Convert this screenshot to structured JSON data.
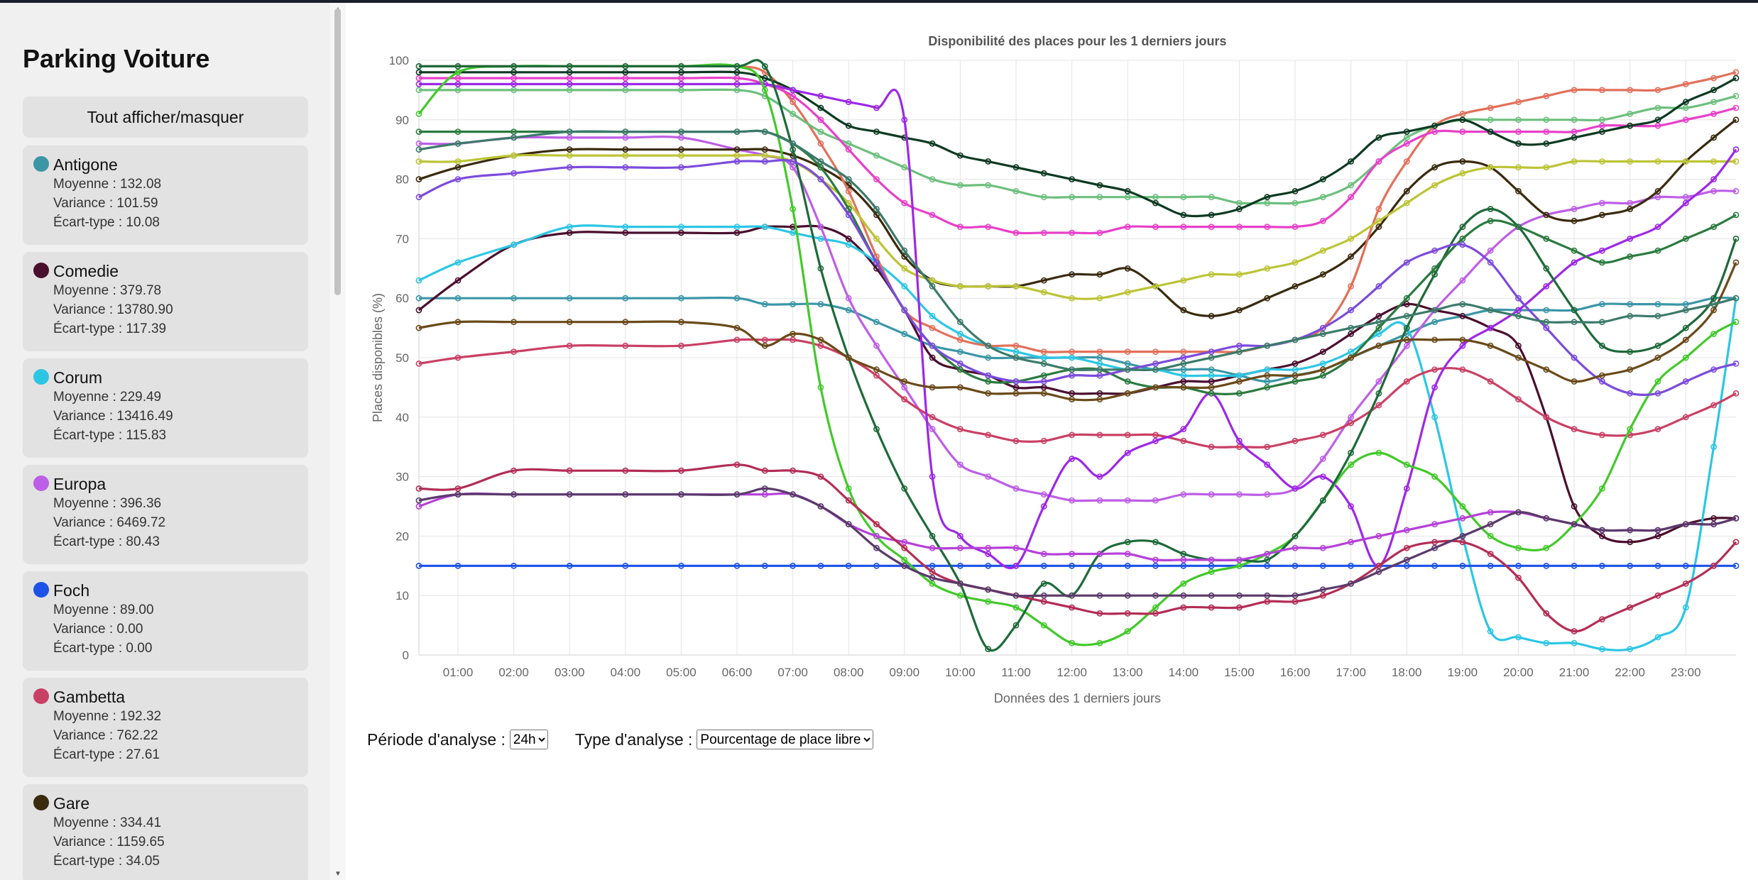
{
  "sidebar": {
    "title": "Parking Voiture",
    "toggle_label": "Tout afficher/masquer",
    "parkings": [
      {
        "name": "Antigone",
        "color": "#3a96a6",
        "moyenne": "Moyenne : 132.08",
        "variance": "Variance : 101.59",
        "ecart": "Écart-type : 10.08"
      },
      {
        "name": "Comedie",
        "color": "#4a0f2e",
        "moyenne": "Moyenne : 379.78",
        "variance": "Variance : 13780.90",
        "ecart": "Écart-type : 117.39"
      },
      {
        "name": "Corum",
        "color": "#2cc6e4",
        "moyenne": "Moyenne : 229.49",
        "variance": "Variance : 13416.49",
        "ecart": "Écart-type : 115.83"
      },
      {
        "name": "Europa",
        "color": "#bd5fe6",
        "moyenne": "Moyenne : 396.36",
        "variance": "Variance : 6469.72",
        "ecart": "Écart-type : 80.43"
      },
      {
        "name": "Foch",
        "color": "#1d52e8",
        "moyenne": "Moyenne : 89.00",
        "variance": "Variance : 0.00",
        "ecart": "Écart-type : 0.00"
      },
      {
        "name": "Gambetta",
        "color": "#c94065",
        "moyenne": "Moyenne : 192.32",
        "variance": "Variance : 762.22",
        "ecart": "Écart-type : 27.61"
      },
      {
        "name": "Gare",
        "color": "#3a2a0e",
        "moyenne": "Moyenne : 334.41",
        "variance": "Variance : 1159.65",
        "ecart": "Écart-type : 34.05"
      }
    ]
  },
  "controls": {
    "period_label": "Période d'analyse :",
    "period_value": "24h",
    "type_label": "Type d'analyse :",
    "type_value": "Pourcentage de place libre"
  },
  "chart_data": {
    "type": "line",
    "title": "Disponibilité des places pour les 1 derniers jours",
    "xlabel": "Données des 1 derniers jours",
    "ylabel": "Places disponibles (%)",
    "ylim": [
      0,
      100
    ],
    "yticks": [
      "0",
      "10",
      "20",
      "30",
      "40",
      "50",
      "60",
      "70",
      "80",
      "90",
      "100"
    ],
    "xlim": [
      0.3,
      23.9
    ],
    "xticks": [
      "01:00",
      "02:00",
      "03:00",
      "04:00",
      "05:00",
      "06:00",
      "07:00",
      "08:00",
      "09:00",
      "10:00",
      "11:00",
      "12:00",
      "13:00",
      "14:00",
      "15:00",
      "16:00",
      "17:00",
      "18:00",
      "19:00",
      "20:00",
      "21:00",
      "22:00",
      "23:00"
    ],
    "grid": true,
    "x": [
      0.3,
      1,
      2,
      3,
      4,
      5,
      6,
      6.5,
      7,
      7.5,
      8,
      8.5,
      9,
      9.5,
      10,
      10.5,
      11,
      11.5,
      12,
      12.5,
      13,
      13.5,
      14,
      14.5,
      15,
      15.5,
      16,
      16.5,
      17,
      17.5,
      18,
      18.5,
      19,
      19.5,
      20,
      20.5,
      21,
      21.5,
      22,
      22.5,
      23,
      23.5,
      23.9
    ],
    "series": [
      {
        "color": "#3a96a6",
        "values": [
          60,
          60,
          60,
          60,
          60,
          60,
          60,
          59,
          59,
          59,
          58,
          56,
          54,
          52,
          51,
          50,
          50,
          50,
          50,
          50,
          49,
          48,
          48,
          48,
          47,
          46,
          47,
          48,
          50,
          52,
          54,
          56,
          57,
          58,
          58,
          58,
          58,
          59,
          59,
          59,
          59,
          60,
          60
        ]
      },
      {
        "color": "#4a0f2e",
        "values": [
          58,
          63,
          69,
          71,
          71,
          71,
          71,
          72,
          72,
          72,
          70,
          65,
          58,
          50,
          48,
          47,
          45,
          45,
          44,
          44,
          44,
          45,
          46,
          46,
          47,
          48,
          49,
          51,
          54,
          57,
          59,
          58,
          57,
          55,
          52,
          40,
          25,
          20,
          19,
          20,
          22,
          23,
          23
        ]
      },
      {
        "color": "#2cc6e4",
        "values": [
          63,
          66,
          69,
          72,
          72,
          72,
          72,
          72,
          71,
          70,
          69,
          66,
          62,
          57,
          54,
          52,
          51,
          50,
          50,
          49,
          48,
          48,
          47,
          47,
          47,
          48,
          48,
          49,
          51,
          54,
          55,
          40,
          20,
          4,
          3,
          2,
          2,
          1,
          1,
          3,
          8,
          35,
          60
        ]
      },
      {
        "color": "#bd5fe6",
        "values": [
          86,
          86,
          87,
          87,
          87,
          87,
          85,
          84,
          82,
          72,
          60,
          52,
          45,
          38,
          32,
          30,
          28,
          27,
          26,
          26,
          26,
          26,
          27,
          27,
          27,
          27,
          28,
          33,
          40,
          46,
          52,
          58,
          63,
          68,
          72,
          74,
          75,
          76,
          76,
          77,
          77,
          78,
          78
        ]
      },
      {
        "color": "#1d52e8",
        "values": [
          15,
          15,
          15,
          15,
          15,
          15,
          15,
          15,
          15,
          15,
          15,
          15,
          15,
          15,
          15,
          15,
          15,
          15,
          15,
          15,
          15,
          15,
          15,
          15,
          15,
          15,
          15,
          15,
          15,
          15,
          15,
          15,
          15,
          15,
          15,
          15,
          15,
          15,
          15,
          15,
          15,
          15,
          15
        ]
      },
      {
        "color": "#c94065",
        "values": [
          49,
          50,
          51,
          52,
          52,
          52,
          53,
          53,
          53,
          52,
          50,
          47,
          43,
          40,
          38,
          37,
          36,
          36,
          37,
          37,
          37,
          37,
          36,
          35,
          35,
          35,
          36,
          37,
          39,
          42,
          46,
          48,
          48,
          46,
          43,
          40,
          38,
          37,
          37,
          38,
          40,
          42,
          44
        ]
      },
      {
        "color": "#3a2a0e",
        "values": [
          80,
          82,
          84,
          85,
          85,
          85,
          85,
          85,
          84,
          82,
          79,
          74,
          67,
          63,
          62,
          62,
          62,
          63,
          64,
          64,
          65,
          62,
          58,
          57,
          58,
          60,
          62,
          64,
          67,
          72,
          78,
          82,
          83,
          82,
          78,
          74,
          73,
          74,
          75,
          78,
          83,
          87,
          90
        ]
      },
      {
        "color": "#e2705a",
        "values": [
          99,
          99,
          99,
          99,
          99,
          99,
          99,
          98,
          93,
          86,
          78,
          67,
          58,
          55,
          53,
          52,
          52,
          51,
          51,
          51,
          51,
          51,
          51,
          51,
          51,
          52,
          53,
          55,
          62,
          75,
          83,
          89,
          91,
          92,
          93,
          94,
          95,
          95,
          95,
          95,
          96,
          97,
          98
        ]
      },
      {
        "color": "#6dbf7e",
        "values": [
          95,
          95,
          95,
          95,
          95,
          95,
          95,
          94,
          91,
          88,
          86,
          84,
          82,
          80,
          79,
          79,
          78,
          77,
          77,
          77,
          77,
          77,
          77,
          77,
          76,
          76,
          76,
          77,
          79,
          83,
          87,
          89,
          90,
          90,
          90,
          90,
          90,
          90,
          91,
          92,
          92,
          93,
          94
        ]
      },
      {
        "color": "#e740c9",
        "values": [
          97,
          97,
          97,
          97,
          97,
          97,
          97,
          96,
          94,
          90,
          85,
          80,
          76,
          74,
          72,
          72,
          71,
          71,
          71,
          71,
          72,
          72,
          72,
          72,
          72,
          72,
          72,
          73,
          77,
          83,
          86,
          88,
          88,
          88,
          88,
          88,
          88,
          89,
          89,
          89,
          90,
          91,
          92
        ]
      },
      {
        "color": "#0d3a22",
        "values": [
          98,
          98,
          98,
          98,
          98,
          98,
          98,
          97,
          95,
          92,
          89,
          88,
          87,
          86,
          84,
          83,
          82,
          81,
          80,
          79,
          78,
          76,
          74,
          74,
          75,
          77,
          78,
          80,
          83,
          87,
          88,
          89,
          90,
          88,
          86,
          86,
          87,
          88,
          89,
          90,
          93,
          95,
          97
        ]
      },
      {
        "color": "#bcc435",
        "values": [
          83,
          83,
          84,
          84,
          84,
          84,
          84,
          84,
          83,
          80,
          76,
          70,
          65,
          63,
          62,
          62,
          62,
          61,
          60,
          60,
          61,
          62,
          63,
          64,
          64,
          65,
          66,
          68,
          70,
          73,
          76,
          79,
          81,
          82,
          82,
          82,
          83,
          83,
          83,
          83,
          83,
          83,
          83
        ]
      },
      {
        "color": "#9d28e6",
        "values": [
          96,
          96,
          96,
          96,
          96,
          96,
          96,
          96,
          95,
          94,
          93,
          92,
          90,
          30,
          20,
          17,
          15,
          25,
          33,
          30,
          34,
          36,
          38,
          44,
          36,
          32,
          28,
          30,
          25,
          15,
          28,
          45,
          52,
          55,
          58,
          62,
          66,
          68,
          70,
          72,
          76,
          80,
          85
        ]
      },
      {
        "color": "#42c92a",
        "values": [
          91,
          98,
          99,
          99,
          99,
          99,
          99,
          95,
          75,
          45,
          28,
          20,
          16,
          12,
          10,
          9,
          8,
          5,
          2,
          2,
          4,
          8,
          12,
          14,
          15,
          17,
          20,
          26,
          32,
          34,
          32,
          30,
          25,
          20,
          18,
          18,
          22,
          28,
          38,
          46,
          50,
          54,
          56
        ]
      },
      {
        "color": "#1e6a3a",
        "values": [
          99,
          99,
          99,
          99,
          99,
          99,
          99,
          99,
          85,
          65,
          50,
          38,
          28,
          20,
          12,
          1,
          5,
          12,
          10,
          17,
          19,
          19,
          17,
          16,
          16,
          16,
          20,
          26,
          34,
          44,
          55,
          64,
          72,
          75,
          72,
          65,
          58,
          52,
          51,
          52,
          55,
          60,
          70
        ]
      },
      {
        "color": "#2b7a3f",
        "values": [
          88,
          88,
          88,
          88,
          88,
          88,
          88,
          88,
          86,
          82,
          75,
          66,
          58,
          52,
          48,
          46,
          46,
          47,
          48,
          48,
          46,
          45,
          45,
          44,
          44,
          45,
          46,
          47,
          50,
          55,
          60,
          65,
          70,
          73,
          72,
          70,
          68,
          66,
          67,
          68,
          70,
          72,
          74
        ]
      },
      {
        "color": "#7c4bdc",
        "values": [
          77,
          80,
          81,
          82,
          82,
          82,
          83,
          83,
          83,
          80,
          74,
          66,
          58,
          52,
          49,
          47,
          46,
          46,
          47,
          47,
          48,
          49,
          50,
          51,
          52,
          52,
          53,
          55,
          58,
          62,
          66,
          68,
          69,
          66,
          60,
          55,
          50,
          46,
          44,
          44,
          46,
          48,
          49
        ]
      },
      {
        "color": "#b540d9",
        "values": [
          25,
          27,
          27,
          27,
          27,
          27,
          27,
          27,
          27,
          25,
          22,
          20,
          19,
          18,
          18,
          18,
          18,
          17,
          17,
          17,
          17,
          16,
          16,
          16,
          16,
          17,
          18,
          18,
          19,
          20,
          21,
          22,
          23,
          24,
          24,
          23,
          22,
          21,
          21,
          21,
          22,
          22,
          23
        ]
      },
      {
        "color": "#b32d55",
        "values": [
          28,
          28,
          31,
          31,
          31,
          31,
          32,
          31,
          31,
          30,
          26,
          22,
          18,
          14,
          12,
          11,
          10,
          9,
          8,
          7,
          7,
          7,
          8,
          8,
          8,
          9,
          9,
          10,
          12,
          15,
          18,
          19,
          19,
          17,
          13,
          7,
          4,
          6,
          8,
          10,
          12,
          15,
          19
        ]
      },
      {
        "color": "#5a3a6a",
        "values": [
          26,
          27,
          27,
          27,
          27,
          27,
          27,
          28,
          27,
          25,
          22,
          18,
          15,
          13,
          12,
          11,
          10,
          10,
          10,
          10,
          10,
          10,
          10,
          10,
          10,
          10,
          10,
          11,
          12,
          14,
          16,
          18,
          20,
          22,
          24,
          23,
          22,
          21,
          21,
          21,
          22,
          22,
          23
        ]
      },
      {
        "color": "#6a4a1a",
        "values": [
          55,
          56,
          56,
          56,
          56,
          56,
          55,
          52,
          54,
          53,
          50,
          48,
          46,
          45,
          45,
          44,
          44,
          44,
          43,
          43,
          44,
          45,
          45,
          45,
          46,
          47,
          47,
          48,
          50,
          52,
          53,
          53,
          53,
          52,
          50,
          48,
          46,
          47,
          48,
          50,
          53,
          58,
          66
        ]
      },
      {
        "color": "#3c7a6a",
        "values": [
          85,
          86,
          87,
          88,
          88,
          88,
          88,
          88,
          86,
          83,
          80,
          75,
          68,
          62,
          56,
          52,
          50,
          49,
          48,
          48,
          48,
          48,
          49,
          50,
          51,
          52,
          53,
          54,
          55,
          56,
          57,
          58,
          59,
          58,
          57,
          56,
          56,
          56,
          57,
          57,
          58,
          59,
          60
        ]
      }
    ]
  }
}
